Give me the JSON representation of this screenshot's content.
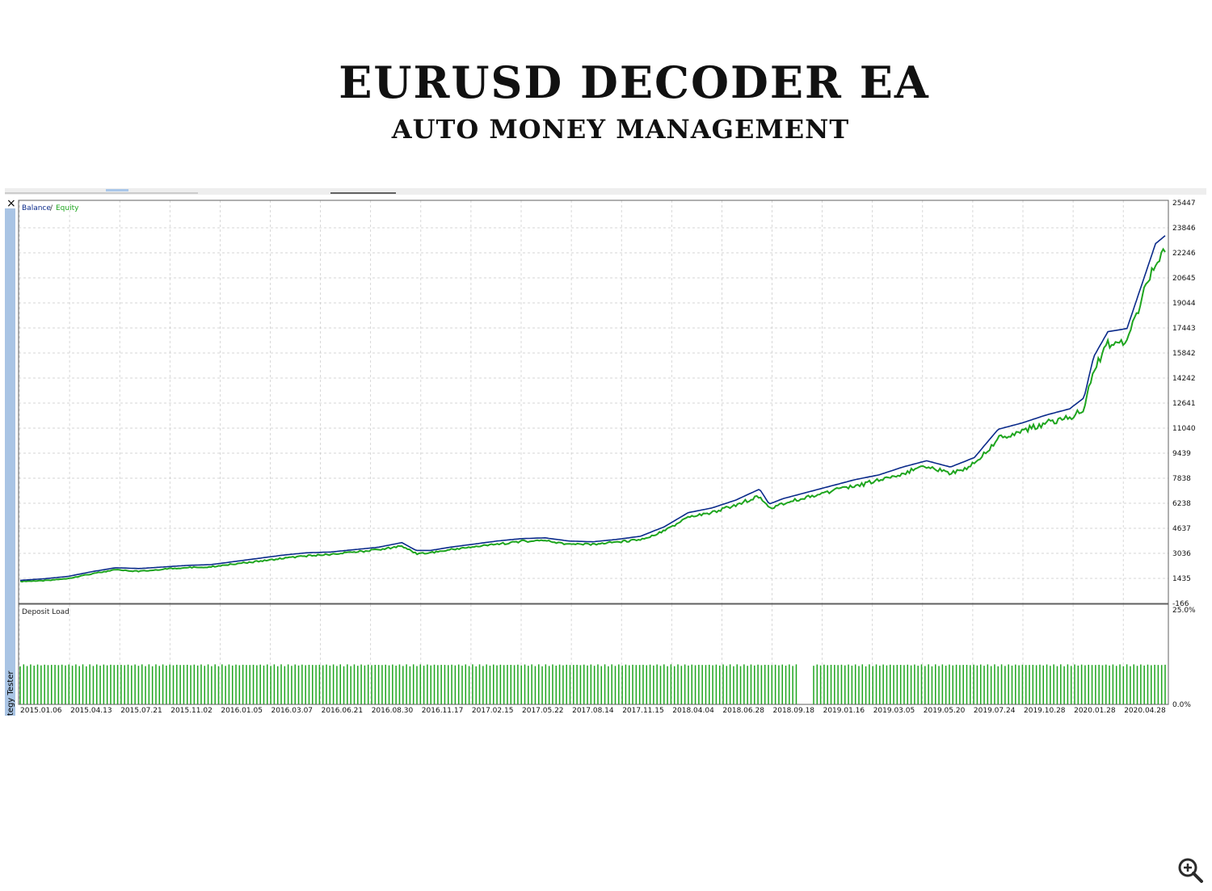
{
  "header": {
    "title": "EURUSD DECODER EA",
    "subtitle": "AUTO MONEY MANAGEMENT"
  },
  "window": {
    "side_tab": "tegy Tester",
    "close_glyph": "×"
  },
  "icons": {
    "zoom": "zoom-in-icon",
    "close": "close-icon"
  },
  "colors": {
    "balance": "#0a2a8a",
    "equity": "#1ea51e",
    "grid": "#c8c8c8",
    "frame": "#606060",
    "deposit_bar": "#1ea51e"
  },
  "chart_data": [
    {
      "type": "line",
      "legend": {
        "balance": "Balance",
        "separator": "/",
        "equity": "Equity",
        "placement": "top-left"
      },
      "grid": true,
      "ylim": [
        -166,
        25447
      ],
      "yticks": [
        "25447",
        "23846",
        "22246",
        "20645",
        "19044",
        "17443",
        "15842",
        "14242",
        "12641",
        "11040",
        "9439",
        "7838",
        "6238",
        "4637",
        "3036",
        "1435",
        "-166"
      ],
      "x": [
        "2015.01.06",
        "2015.04.13",
        "2015.07.21",
        "2015.11.02",
        "2016.01.05",
        "2016.03.07",
        "2016.06.21",
        "2016.08.30",
        "2016.11.17",
        "2017.02.15",
        "2017.05.22",
        "2017.08.14",
        "2017.11.15",
        "2018.04.04",
        "2018.06.28",
        "2018.09.18",
        "2019.01.16",
        "2019.03.05",
        "2019.05.20",
        "2019.07.24",
        "2019.10.28",
        "2020.01.28",
        "2020.04.28"
      ],
      "series": [
        {
          "name": "Balance",
          "points": [
            [
              0,
              1300
            ],
            [
              0.5,
              1400
            ],
            [
              1,
              1550
            ],
            [
              1.5,
              1850
            ],
            [
              2,
              2100
            ],
            [
              2.5,
              2050
            ],
            [
              3,
              2150
            ],
            [
              3.5,
              2250
            ],
            [
              4,
              2300
            ],
            [
              4.5,
              2500
            ],
            [
              5,
              2700
            ],
            [
              5.5,
              2900
            ],
            [
              6,
              3050
            ],
            [
              6.5,
              3100
            ],
            [
              7,
              3250
            ],
            [
              7.5,
              3400
            ],
            [
              8,
              3700
            ],
            [
              8.3,
              3200
            ],
            [
              8.6,
              3200
            ],
            [
              9,
              3400
            ],
            [
              9.5,
              3600
            ],
            [
              10,
              3800
            ],
            [
              10.5,
              3950
            ],
            [
              11,
              4000
            ],
            [
              11.5,
              3800
            ],
            [
              12,
              3750
            ],
            [
              12.5,
              3900
            ],
            [
              13,
              4100
            ],
            [
              13.5,
              4700
            ],
            [
              14,
              5600
            ],
            [
              14.5,
              5900
            ],
            [
              15,
              6400
            ],
            [
              15.5,
              7100
            ],
            [
              15.7,
              6150
            ],
            [
              16,
              6500
            ],
            [
              16.5,
              6900
            ],
            [
              17,
              7300
            ],
            [
              17.5,
              7700
            ],
            [
              18,
              8000
            ],
            [
              18.5,
              8500
            ],
            [
              19,
              8900
            ],
            [
              19.5,
              8500
            ],
            [
              20,
              9100
            ],
            [
              20.5,
              10900
            ],
            [
              21,
              11300
            ],
            [
              21.5,
              11800
            ],
            [
              22,
              12200
            ],
            [
              22.3,
              12900
            ],
            [
              22.5,
              15500
            ],
            [
              22.8,
              17100
            ],
            [
              23.2,
              17300
            ],
            [
              23.5,
              20000
            ],
            [
              23.8,
              22700
            ],
            [
              24,
              23200
            ]
          ]
        },
        {
          "name": "Equity",
          "points": [
            [
              0,
              1250
            ],
            [
              0.5,
              1300
            ],
            [
              1,
              1450
            ],
            [
              1.5,
              1750
            ],
            [
              2,
              2000
            ],
            [
              2.5,
              1900
            ],
            [
              3,
              2050
            ],
            [
              3.5,
              2150
            ],
            [
              4,
              2200
            ],
            [
              4.5,
              2400
            ],
            [
              5,
              2550
            ],
            [
              5.5,
              2750
            ],
            [
              6,
              2900
            ],
            [
              6.5,
              3000
            ],
            [
              7,
              3150
            ],
            [
              7.5,
              3300
            ],
            [
              8,
              3550
            ],
            [
              8.3,
              3050
            ],
            [
              8.6,
              3100
            ],
            [
              9,
              3300
            ],
            [
              9.5,
              3500
            ],
            [
              10,
              3650
            ],
            [
              10.5,
              3850
            ],
            [
              11,
              3900
            ],
            [
              11.5,
              3650
            ],
            [
              12,
              3650
            ],
            [
              12.5,
              3800
            ],
            [
              13,
              3950
            ],
            [
              13.5,
              4500
            ],
            [
              14,
              5400
            ],
            [
              14.5,
              5700
            ],
            [
              15,
              6200
            ],
            [
              15.5,
              6800
            ],
            [
              15.7,
              5950
            ],
            [
              16,
              6300
            ],
            [
              16.5,
              6700
            ],
            [
              17,
              7100
            ],
            [
              17.5,
              7400
            ],
            [
              18,
              7800
            ],
            [
              18.5,
              8250
            ],
            [
              19,
              8700
            ],
            [
              19.5,
              8200
            ],
            [
              20,
              8850
            ],
            [
              20.5,
              10500
            ],
            [
              21,
              11000
            ],
            [
              21.5,
              11500
            ],
            [
              22,
              11900
            ],
            [
              22.3,
              12300
            ],
            [
              22.5,
              15000
            ],
            [
              22.8,
              16600
            ],
            [
              23.2,
              16800
            ],
            [
              23.5,
              19400
            ],
            [
              23.8,
              22000
            ],
            [
              24,
              22700
            ]
          ]
        }
      ]
    },
    {
      "type": "bar",
      "title": "Deposit Load",
      "grid": true,
      "ylim": [
        0,
        25
      ],
      "yticks": [
        "25.0%",
        "0.0%"
      ],
      "values_note": "",
      "bar_value": 10,
      "bar_range": [
        0,
        24
      ],
      "gap": [
        16.3,
        16.6
      ]
    }
  ]
}
